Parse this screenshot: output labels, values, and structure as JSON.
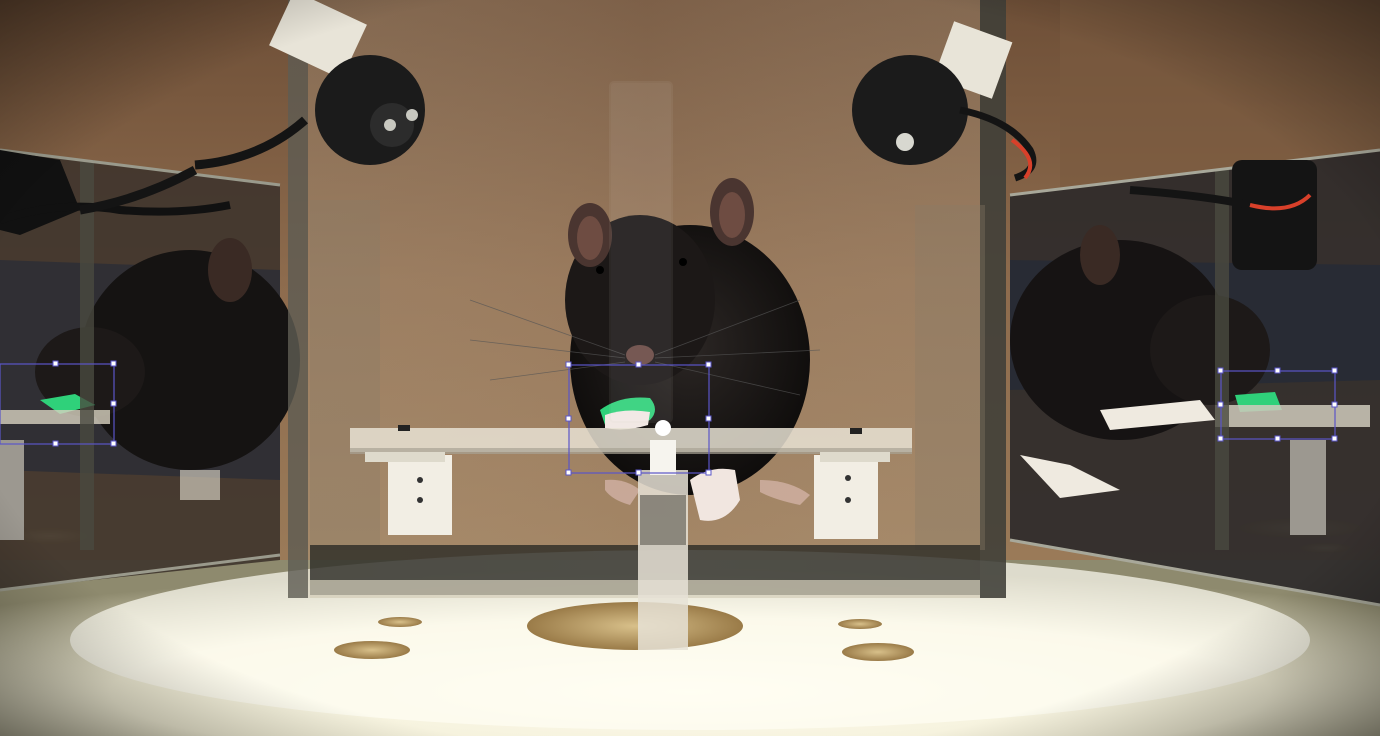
{
  "scene": {
    "subject": "rat",
    "colors": {
      "wall": "#8a6a4c",
      "floor": "#f4f0da",
      "glass_edge": "#3a3a34",
      "fur": "#1a1716",
      "paw_marker": "#2fd17a",
      "roi": "#5a55c8",
      "lamp": "#1b1b1b",
      "cable_red": "#d8402a"
    }
  },
  "roi_boxes": [
    {
      "name": "roi-box-left-mirror"
    },
    {
      "name": "roi-box-center"
    },
    {
      "name": "roi-box-right-mirror"
    }
  ]
}
